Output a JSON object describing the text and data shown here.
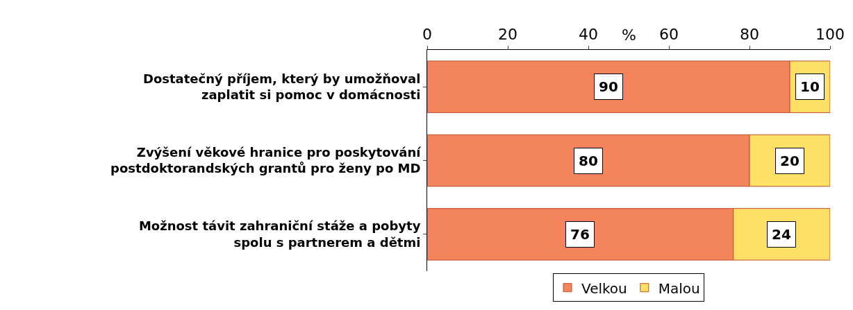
{
  "chart_data": {
    "type": "bar",
    "orientation": "horizontal",
    "stacked": true,
    "xlabel": "%",
    "categories": [
      "Dostatečný příjem, který by umožňoval zaplatit si pomoc v domácnosti",
      "Zvýšení věkové hranice pro poskytování postdoktorandských grantů pro ženy po MD",
      "Možnost távit zahraniční stáže a pobyty spolu s partnerem a dětmi"
    ],
    "series": [
      {
        "name": "Velkou",
        "color": "#f4845c",
        "values": [
          90,
          80,
          76
        ]
      },
      {
        "name": "Malou",
        "color": "#ffe066",
        "values": [
          10,
          20,
          24
        ]
      }
    ],
    "xlim": [
      0,
      100
    ],
    "xticks": [
      0,
      20,
      40,
      60,
      80,
      100
    ],
    "data_labels": true,
    "legend": "bottom"
  }
}
